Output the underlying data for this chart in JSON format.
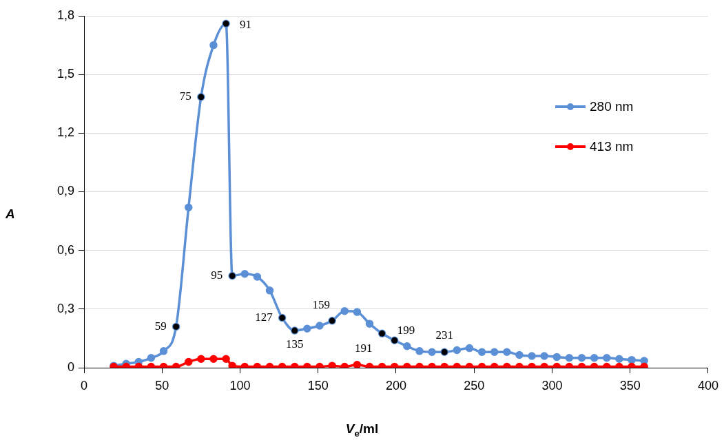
{
  "chart_data": {
    "type": "line",
    "xlabel": "V$_{e}$/ml",
    "ylabel": "A",
    "x": [
      19,
      27,
      35,
      43,
      51,
      59,
      67,
      75,
      83,
      91,
      95,
      103,
      111,
      119,
      127,
      135,
      143,
      151,
      159,
      167,
      175,
      183,
      191,
      199,
      207,
      215,
      223,
      231,
      239,
      247,
      255,
      263,
      271,
      279,
      287,
      295,
      303,
      311,
      319,
      327,
      335,
      343,
      351,
      359
    ],
    "series": [
      {
        "name": "280 nm",
        "color": "#5b8fd6",
        "values": [
          0.01,
          0.02,
          0.03,
          0.05,
          0.085,
          0.21,
          0.82,
          1.385,
          1.65,
          1.76,
          0.47,
          0.48,
          0.465,
          0.395,
          0.255,
          0.19,
          0.2,
          0.215,
          0.24,
          0.29,
          0.285,
          0.225,
          0.175,
          0.14,
          0.11,
          0.085,
          0.08,
          0.08,
          0.09,
          0.1,
          0.08,
          0.08,
          0.08,
          0.065,
          0.06,
          0.06,
          0.055,
          0.05,
          0.05,
          0.05,
          0.05,
          0.045,
          0.04,
          0.035
        ]
      },
      {
        "name": "413 nm",
        "color": "#ff0000",
        "values": [
          0.005,
          0.005,
          0.005,
          0.005,
          0.005,
          0.005,
          0.03,
          0.045,
          0.045,
          0.045,
          0.01,
          0.005,
          0.005,
          0.005,
          0.005,
          0.005,
          0.005,
          0.005,
          0.01,
          0.005,
          0.015,
          0.005,
          0.005,
          0.005,
          0.005,
          0.005,
          0.005,
          0.005,
          0.005,
          0.005,
          0.005,
          0.005,
          0.005,
          0.005,
          0.005,
          0.005,
          0.005,
          0.005,
          0.005,
          0.005,
          0.005,
          0.005,
          0.005,
          0.005
        ]
      }
    ],
    "annotations": [
      {
        "text": "59",
        "x": 59,
        "y": 0.21
      },
      {
        "text": "75",
        "x": 75,
        "y": 1.385
      },
      {
        "text": "91",
        "x": 91,
        "y": 1.76
      },
      {
        "text": "95",
        "x": 95,
        "y": 0.47
      },
      {
        "text": "127",
        "x": 127,
        "y": 0.255
      },
      {
        "text": "135",
        "x": 135,
        "y": 0.19
      },
      {
        "text": "159",
        "x": 159,
        "y": 0.24
      },
      {
        "text": "191",
        "x": 191,
        "y": 0.175
      },
      {
        "text": "199",
        "x": 199,
        "y": 0.14
      },
      {
        "text": "231",
        "x": 231,
        "y": 0.08
      }
    ],
    "xlim": [
      0,
      400
    ],
    "xticks": [
      0,
      50,
      100,
      150,
      200,
      250,
      300,
      350,
      400
    ],
    "ylim": [
      0,
      1.8
    ],
    "yticks": [
      0,
      {
        "value": 0.3,
        "label": "0,3"
      },
      {
        "value": 0.6,
        "label": "0,6"
      },
      {
        "value": 0.9,
        "label": "0,9"
      },
      {
        "value": 1.2,
        "label": "1,2"
      },
      {
        "value": 1.5,
        "label": "1,5"
      },
      {
        "value": 1.8,
        "label": "1,8"
      }
    ],
    "grid": "y",
    "legend": "right",
    "marker": "circle",
    "line_style": "solid"
  }
}
